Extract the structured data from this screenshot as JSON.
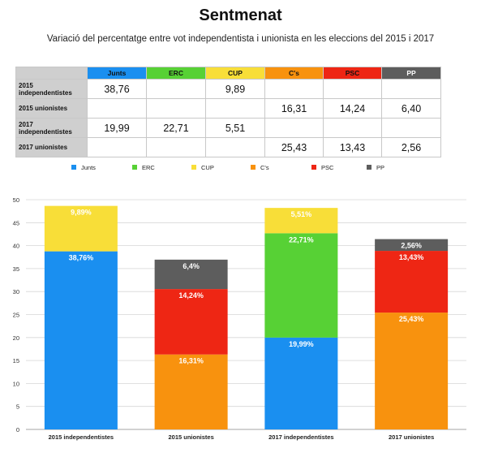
{
  "chart_data": {
    "type": "bar",
    "stacked": true,
    "title": "Sentmenat",
    "subtitle": "Variació del percentatge entre vot independentista i unionista en les eleccions del 2015 i 2017",
    "categories": [
      "2015 independentistes",
      "2015 unionistes",
      "2017 independentistes",
      "2017 unionistes"
    ],
    "series": [
      {
        "name": "Junts",
        "color": "#1a8ff0",
        "values": [
          38.76,
          null,
          19.99,
          null
        ],
        "labels": [
          "38,76%",
          "",
          "19,99%",
          ""
        ]
      },
      {
        "name": "ERC",
        "color": "#57d135",
        "values": [
          null,
          null,
          22.71,
          null
        ],
        "labels": [
          "",
          "",
          "22,71%",
          ""
        ]
      },
      {
        "name": "CUP",
        "color": "#f8de38",
        "values": [
          9.89,
          null,
          5.51,
          null
        ],
        "labels": [
          "9,89%",
          "",
          "5,51%",
          ""
        ]
      },
      {
        "name": "C's",
        "color": "#f8920e",
        "values": [
          null,
          16.31,
          null,
          25.43
        ],
        "labels": [
          "",
          "16,31%",
          "",
          "25,43%"
        ]
      },
      {
        "name": "PSC",
        "color": "#ee2614",
        "values": [
          null,
          14.24,
          null,
          13.43
        ],
        "labels": [
          "",
          "14,24%",
          "",
          "13,43%"
        ]
      },
      {
        "name": "PP",
        "color": "#5d5d5d",
        "values": [
          null,
          6.4,
          null,
          2.56
        ],
        "labels": [
          "",
          "6,4%",
          "",
          "2,56%"
        ]
      }
    ],
    "ylim": [
      0,
      50
    ],
    "yticks": [
      "0",
      "5",
      "10",
      "15",
      "20",
      "25",
      "30",
      "35",
      "40",
      "45",
      "50"
    ],
    "grid": true,
    "legend": "top",
    "table": {
      "columns": [
        "Junts",
        "ERC",
        "CUP",
        "C's",
        "PSC",
        "PP"
      ],
      "column_colors": [
        "#1a8ff0",
        "#57d135",
        "#f8de38",
        "#f8920e",
        "#ee2614",
        "#5d5d5d"
      ],
      "rows": [
        {
          "label": "2015 independentistes",
          "cells": [
            "38,76",
            "",
            "9,89",
            "",
            "",
            ""
          ]
        },
        {
          "label": "2015 unionistes",
          "cells": [
            "",
            "",
            "",
            "16,31",
            "14,24",
            "6,40"
          ]
        },
        {
          "label": "2017 independentistes",
          "cells": [
            "19,99",
            "22,71",
            "5,51",
            "",
            "",
            ""
          ]
        },
        {
          "label": "2017 unionistes",
          "cells": [
            "",
            "",
            "",
            "25,43",
            "13,43",
            "2,56"
          ]
        }
      ]
    }
  }
}
